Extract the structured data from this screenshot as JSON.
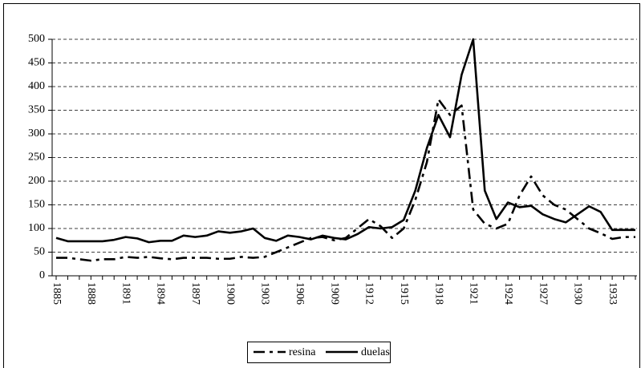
{
  "chart_data": {
    "type": "line",
    "categories": [
      "1885",
      null,
      null,
      "1888",
      null,
      null,
      "1891",
      null,
      null,
      "1894",
      null,
      null,
      "1897",
      null,
      null,
      "1900",
      null,
      null,
      "1903",
      null,
      null,
      "1906",
      null,
      null,
      "1909",
      null,
      null,
      "1912",
      null,
      null,
      "1915",
      null,
      null,
      "1918",
      null,
      null,
      "1921",
      null,
      null,
      "1924",
      null,
      null,
      "1927",
      null,
      null,
      "1930",
      null,
      null,
      "1933",
      null,
      null
    ],
    "series": [
      {
        "name": "resina",
        "color": "#000000",
        "dash": true,
        "values": [
          38,
          38,
          35,
          32,
          35,
          35,
          40,
          38,
          40,
          37,
          35,
          38,
          38,
          38,
          36,
          36,
          40,
          38,
          40,
          50,
          60,
          70,
          80,
          82,
          75,
          80,
          100,
          120,
          105,
          80,
          100,
          160,
          240,
          373,
          340,
          360,
          140,
          110,
          100,
          110,
          170,
          210,
          170,
          150,
          140,
          120,
          100,
          90,
          78,
          82,
          82
        ]
      },
      {
        "name": "duelas",
        "color": "#000000",
        "dash": false,
        "values": [
          80,
          73,
          73,
          73,
          73,
          76,
          82,
          79,
          71,
          74,
          74,
          85,
          82,
          85,
          94,
          91,
          94,
          100,
          80,
          74,
          85,
          82,
          77,
          85,
          80,
          77,
          88,
          103,
          100,
          103,
          118,
          180,
          270,
          340,
          293,
          425,
          500,
          180,
          120,
          155,
          145,
          148,
          130,
          120,
          113,
          130,
          147,
          135,
          97,
          97,
          97
        ]
      }
    ],
    "ylim": [
      0,
      500
    ],
    "yticks": [
      0,
      50,
      100,
      150,
      200,
      250,
      300,
      350,
      400,
      450,
      500
    ],
    "grid": true,
    "legend": "bottom"
  }
}
